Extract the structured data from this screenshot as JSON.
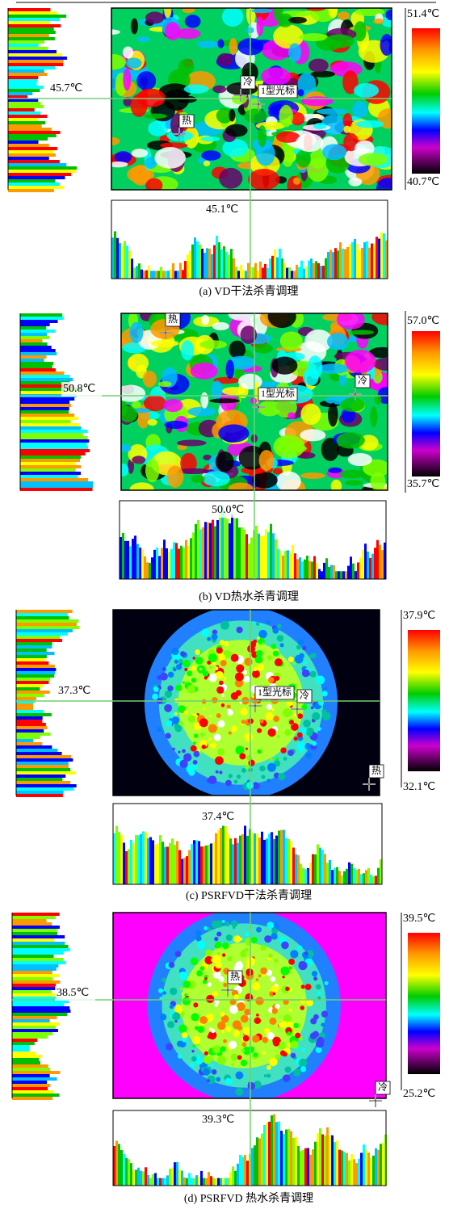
{
  "panels": [
    {
      "scale_max": "51.4℃",
      "scale_min": "40.7℃",
      "left_profile_label": "45.7℃",
      "bottom_profile_label": "45.1℃",
      "markers": [
        "冷",
        "1型光标",
        "热"
      ],
      "caption": "(a) VD干法杀青调理"
    },
    {
      "scale_max": "57.0℃",
      "scale_min": "35.7℃",
      "left_profile_label": "50.8℃",
      "bottom_profile_label": "50.0℃",
      "markers": [
        "热",
        "1型光标",
        "冷"
      ],
      "caption": "(b) VD热水杀青调理"
    },
    {
      "scale_max": "37.9℃",
      "scale_min": "32.1℃",
      "left_profile_label": "37.3℃",
      "bottom_profile_label": "37.4℃",
      "markers": [
        "1型光标",
        "冷",
        "热"
      ],
      "caption": "(c) PSRFVD干法杀青调理"
    },
    {
      "scale_max": "39.5℃",
      "scale_min": "25.2℃",
      "left_profile_label": "38.5℃",
      "bottom_profile_label": "39.3℃",
      "markers": [
        "热",
        "冷"
      ],
      "caption": "(d) PSRFVD 热水杀青调理"
    }
  ]
}
